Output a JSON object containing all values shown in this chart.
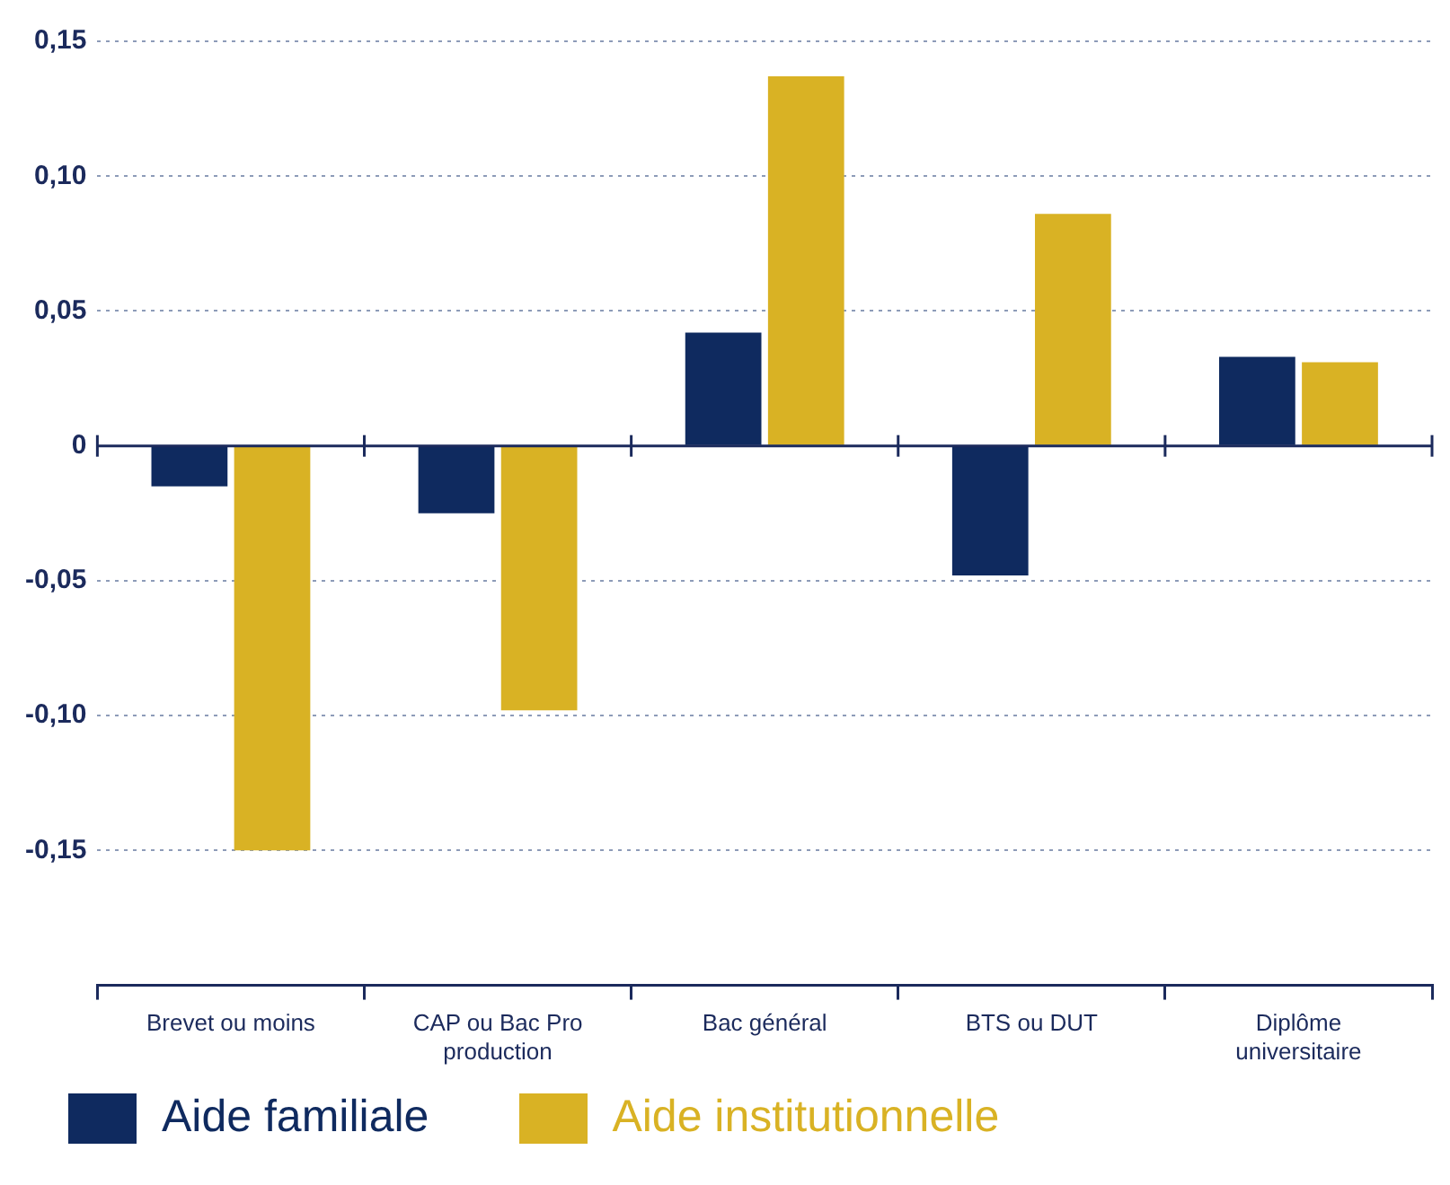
{
  "chart_data": {
    "type": "bar",
    "categories": [
      "Brevet ou moins",
      "CAP ou Bac Pro production",
      "Bac général",
      "BTS ou DUT",
      "Diplôme universitaire"
    ],
    "series": [
      {
        "name": "Aide familiale",
        "color": "#0f2a5f",
        "values": [
          -0.015,
          -0.025,
          0.042,
          -0.048,
          0.033
        ]
      },
      {
        "name": "Aide institutionnelle",
        "color": "#d9b224",
        "values": [
          -0.15,
          -0.098,
          0.137,
          0.086,
          0.031
        ]
      }
    ],
    "ylim": [
      -0.2,
      0.15
    ],
    "yticks": [
      {
        "value": -0.2,
        "label": null
      },
      {
        "value": -0.15,
        "label": "-0,15"
      },
      {
        "value": -0.1,
        "label": "-0,10"
      },
      {
        "value": -0.05,
        "label": "-0,05"
      },
      {
        "value": 0,
        "label": "0"
      },
      {
        "value": 0.05,
        "label": "0,05"
      },
      {
        "value": 0.1,
        "label": "0,10"
      },
      {
        "value": 0.15,
        "label": "0,15"
      }
    ],
    "ref_lines": [
      {
        "axis": "y",
        "value": 0,
        "color": "#1b2a5c"
      }
    ],
    "grid": "y",
    "legend": "bottom left"
  }
}
